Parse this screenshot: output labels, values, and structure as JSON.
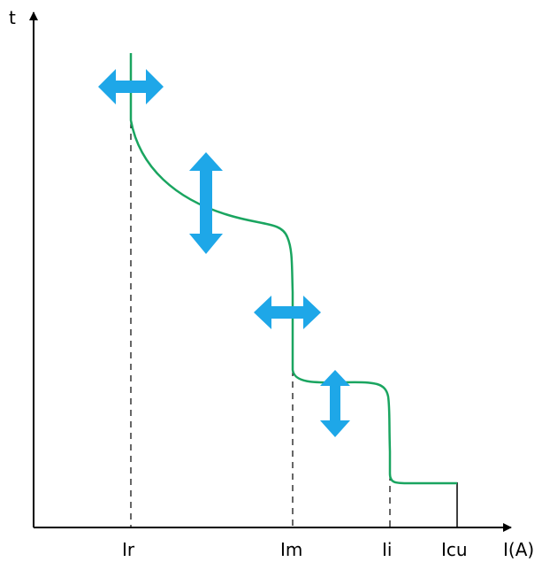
{
  "axes": {
    "y_label": "t",
    "x_label": "I(A)"
  },
  "ticks": [
    {
      "key": "ir",
      "label": "Ir"
    },
    {
      "key": "im",
      "label": "Im"
    },
    {
      "key": "ii",
      "label": "Ii"
    },
    {
      "key": "icu",
      "label": "Icu"
    }
  ],
  "colors": {
    "curve": "#1aa560",
    "arrow": "#1ea7e8",
    "axis": "#000000"
  },
  "arrows": [
    {
      "name": "ir-adjust-arrow",
      "direction": "horizontal"
    },
    {
      "name": "long-time-delay-adjust-arrow",
      "direction": "vertical"
    },
    {
      "name": "im-adjust-arrow",
      "direction": "horizontal"
    },
    {
      "name": "short-time-delay-adjust-arrow",
      "direction": "vertical"
    }
  ]
}
